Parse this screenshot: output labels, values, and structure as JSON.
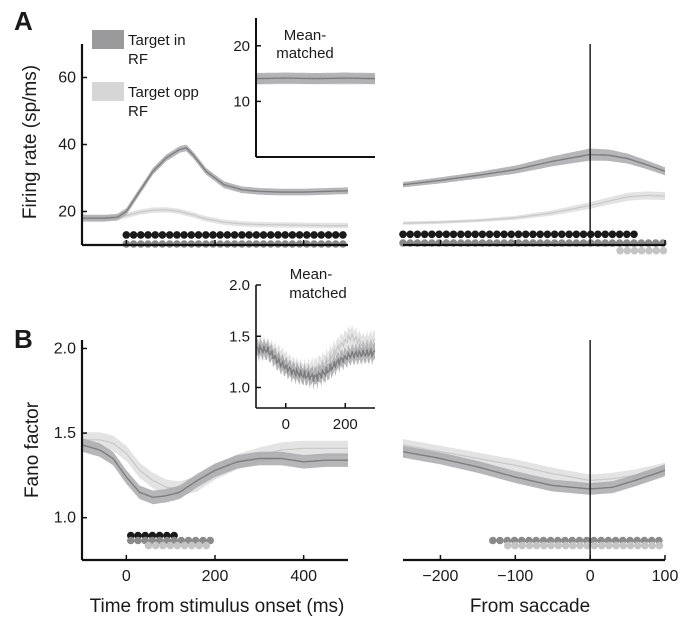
{
  "panel_labels": {
    "A": "A",
    "B": "B"
  },
  "legend": [
    {
      "label_lines": [
        "Target in",
        "RF"
      ],
      "color": "#9a9a9c"
    },
    {
      "label_lines": [
        "Target opp",
        "RF"
      ],
      "color": "#d6d6d6"
    }
  ],
  "colors": {
    "target_in_rf": "#7d7d80",
    "target_in_rf_band": "#a9a9ab",
    "target_opp_rf": "#c8c8c8",
    "target_opp_rf_band": "#dedede",
    "dot_black": "#1a1a1a",
    "dot_dark_gray": "#8a8a8a",
    "dot_light_gray": "#c4c4c4"
  },
  "chart_data": [
    {
      "id": "A-left",
      "type": "line",
      "ylabel": "Firing rate (sp/ms)",
      "xlim": [
        -100,
        500
      ],
      "ylim": [
        10,
        70
      ],
      "xticks": [
        0,
        200,
        400
      ],
      "yticks": [
        20,
        40,
        60
      ],
      "ytick_labels": [
        "20",
        "40",
        "60"
      ],
      "series": [
        {
          "name": "Target in RF",
          "x": [
            -100,
            -50,
            -20,
            0,
            30,
            60,
            90,
            120,
            135,
            150,
            180,
            220,
            260,
            300,
            350,
            400,
            450,
            500
          ],
          "y": [
            18,
            18,
            18.3,
            20,
            26,
            32,
            36,
            38.5,
            39,
            37,
            32,
            28,
            26.5,
            26,
            25.8,
            25.8,
            26,
            26.2
          ],
          "band": 1.0
        },
        {
          "name": "Target opp RF",
          "x": [
            -100,
            -50,
            -20,
            0,
            30,
            60,
            90,
            120,
            150,
            180,
            220,
            260,
            300,
            350,
            400,
            450,
            500
          ],
          "y": [
            18,
            18,
            18.2,
            18.8,
            19.8,
            20.4,
            20.5,
            20,
            19,
            17.8,
            16.8,
            16.3,
            16.1,
            16,
            15.9,
            15.8,
            15.8
          ],
          "band": 0.8
        }
      ],
      "significance_rows": [
        {
          "color": "dot_black",
          "x_start": 0,
          "x_end": 500,
          "y": 13
        },
        {
          "color": "dot_dark_gray",
          "x_start": 0,
          "x_end": 500,
          "y": 10.3
        }
      ]
    },
    {
      "id": "A-inset",
      "type": "line",
      "title_lines": [
        "Mean-",
        "matched"
      ],
      "xlim": [
        -100,
        300
      ],
      "ylim": [
        0,
        25
      ],
      "yticks": [
        10,
        20
      ],
      "ytick_labels": [
        "10",
        "20"
      ],
      "series": [
        {
          "name": "Target in RF",
          "x": [
            -100,
            0,
            100,
            200,
            300
          ],
          "y": [
            14.1,
            14.2,
            14.1,
            14.2,
            14.1
          ],
          "band": 1.0
        },
        {
          "name": "Target opp RF",
          "x": [
            -100,
            0,
            100,
            200,
            300
          ],
          "y": [
            13.9,
            14.0,
            14.0,
            13.9,
            14.0
          ],
          "band": 0.9
        }
      ]
    },
    {
      "id": "A-right",
      "type": "line",
      "xlim": [
        -250,
        100
      ],
      "ylim": [
        10,
        70
      ],
      "xticks": [
        -200,
        -100,
        0,
        100
      ],
      "yticks": [
        20,
        40,
        60
      ],
      "vline_x": 0,
      "series": [
        {
          "name": "Target in RF",
          "x": [
            -250,
            -200,
            -150,
            -100,
            -50,
            0,
            25,
            50,
            75,
            100
          ],
          "y": [
            28,
            29.3,
            30.8,
            32.5,
            35,
            37,
            36.8,
            35.8,
            34,
            32
          ],
          "band": [
            0.8,
            0.9,
            1.0,
            1.2,
            1.5,
            1.8,
            1.7,
            1.5,
            1.3,
            1.2
          ]
        },
        {
          "name": "Target opp RF",
          "x": [
            -250,
            -200,
            -150,
            -100,
            -50,
            0,
            50,
            75,
            100
          ],
          "y": [
            16.5,
            16.8,
            17.3,
            18.1,
            19.6,
            21.8,
            24.4,
            24.8,
            24.6
          ],
          "band": [
            0.5,
            0.5,
            0.5,
            0.6,
            0.8,
            1.0,
            1.2,
            1.2,
            1.2
          ]
        }
      ],
      "significance_rows": [
        {
          "color": "dot_black",
          "x_start": -250,
          "x_end": 60,
          "y": 13.2
        },
        {
          "color": "dot_dark_gray",
          "x_start": -250,
          "x_end": 100,
          "y": 10.6
        },
        {
          "color": "dot_light_gray",
          "x_start": 40,
          "x_end": 100,
          "y": 8.3
        }
      ]
    },
    {
      "id": "B-left",
      "type": "line",
      "ylabel": "Fano factor",
      "xlabel": "Time from stimulus onset (ms)",
      "xlim": [
        -100,
        500
      ],
      "ylim": [
        0.75,
        2.05
      ],
      "xticks": [
        0,
        200,
        400
      ],
      "xtick_labels": [
        "0",
        "200",
        "400"
      ],
      "yticks": [
        1.0,
        1.5,
        2.0
      ],
      "ytick_labels": [
        "1.0",
        "1.5",
        "2.0"
      ],
      "series": [
        {
          "name": "Target in RF",
          "x": [
            -100,
            -60,
            -30,
            0,
            30,
            60,
            90,
            120,
            160,
            200,
            250,
            300,
            350,
            400,
            450,
            500
          ],
          "y": [
            1.43,
            1.4,
            1.35,
            1.24,
            1.15,
            1.12,
            1.13,
            1.15,
            1.22,
            1.28,
            1.33,
            1.35,
            1.35,
            1.33,
            1.34,
            1.34
          ],
          "band": 0.04
        },
        {
          "name": "Target opp RF",
          "x": [
            -100,
            -60,
            -30,
            0,
            30,
            60,
            90,
            120,
            160,
            200,
            250,
            300,
            350,
            400,
            450,
            500
          ],
          "y": [
            1.46,
            1.46,
            1.44,
            1.38,
            1.28,
            1.22,
            1.18,
            1.17,
            1.2,
            1.27,
            1.33,
            1.37,
            1.4,
            1.41,
            1.41,
            1.41
          ],
          "band": 0.045
        }
      ],
      "significance_rows": [
        {
          "color": "dot_black",
          "x_start": 10,
          "x_end": 120,
          "y": 0.895
        },
        {
          "color": "dot_dark_gray",
          "x_start": 10,
          "x_end": 200,
          "y": 0.865
        },
        {
          "color": "dot_light_gray",
          "x_start": 50,
          "x_end": 190,
          "y": 0.835
        }
      ]
    },
    {
      "id": "B-inset",
      "type": "line",
      "title_lines": [
        "Mean-",
        "matched"
      ],
      "xlim": [
        -100,
        300
      ],
      "ylim": [
        0.8,
        2.0
      ],
      "xticks": [
        0,
        200
      ],
      "xtick_labels": [
        "0",
        "200"
      ],
      "yticks": [
        1.0,
        1.5,
        2.0
      ],
      "ytick_labels": [
        "1.0",
        "1.5",
        "2.0"
      ],
      "series": [
        {
          "name": "Target in RF",
          "x": [
            -100,
            -60,
            -20,
            20,
            60,
            100,
            140,
            180,
            220,
            260,
            300
          ],
          "y": [
            1.38,
            1.36,
            1.24,
            1.16,
            1.12,
            1.1,
            1.16,
            1.26,
            1.32,
            1.33,
            1.34
          ],
          "band": 0.08
        },
        {
          "name": "Target opp RF",
          "x": [
            -100,
            -60,
            -20,
            20,
            60,
            100,
            140,
            180,
            220,
            260,
            300
          ],
          "y": [
            1.4,
            1.37,
            1.3,
            1.2,
            1.15,
            1.18,
            1.26,
            1.4,
            1.5,
            1.42,
            1.45
          ],
          "band": 0.09
        }
      ]
    },
    {
      "id": "B-right",
      "type": "line",
      "xlabel": "From saccade",
      "xlim": [
        -250,
        100
      ],
      "ylim": [
        0.75,
        2.05
      ],
      "xticks": [
        -200,
        -100,
        0,
        100
      ],
      "xtick_labels": [
        "−200",
        "−100",
        "0",
        "100"
      ],
      "vline_x": 0,
      "series": [
        {
          "name": "Target in RF",
          "x": [
            -250,
            -200,
            -150,
            -100,
            -50,
            0,
            30,
            60,
            100
          ],
          "y": [
            1.39,
            1.35,
            1.3,
            1.24,
            1.19,
            1.17,
            1.18,
            1.22,
            1.28
          ],
          "band": 0.035
        },
        {
          "name": "Target opp RF",
          "x": [
            -250,
            -200,
            -150,
            -100,
            -50,
            0,
            30,
            60,
            100
          ],
          "y": [
            1.43,
            1.39,
            1.35,
            1.31,
            1.26,
            1.22,
            1.23,
            1.25,
            1.29
          ],
          "band": 0.035
        }
      ],
      "significance_rows": [
        {
          "color": "dot_dark_gray",
          "x_start": -130,
          "x_end": 100,
          "y": 0.865
        },
        {
          "color": "dot_light_gray",
          "x_start": -110,
          "x_end": 100,
          "y": 0.835
        }
      ]
    }
  ]
}
